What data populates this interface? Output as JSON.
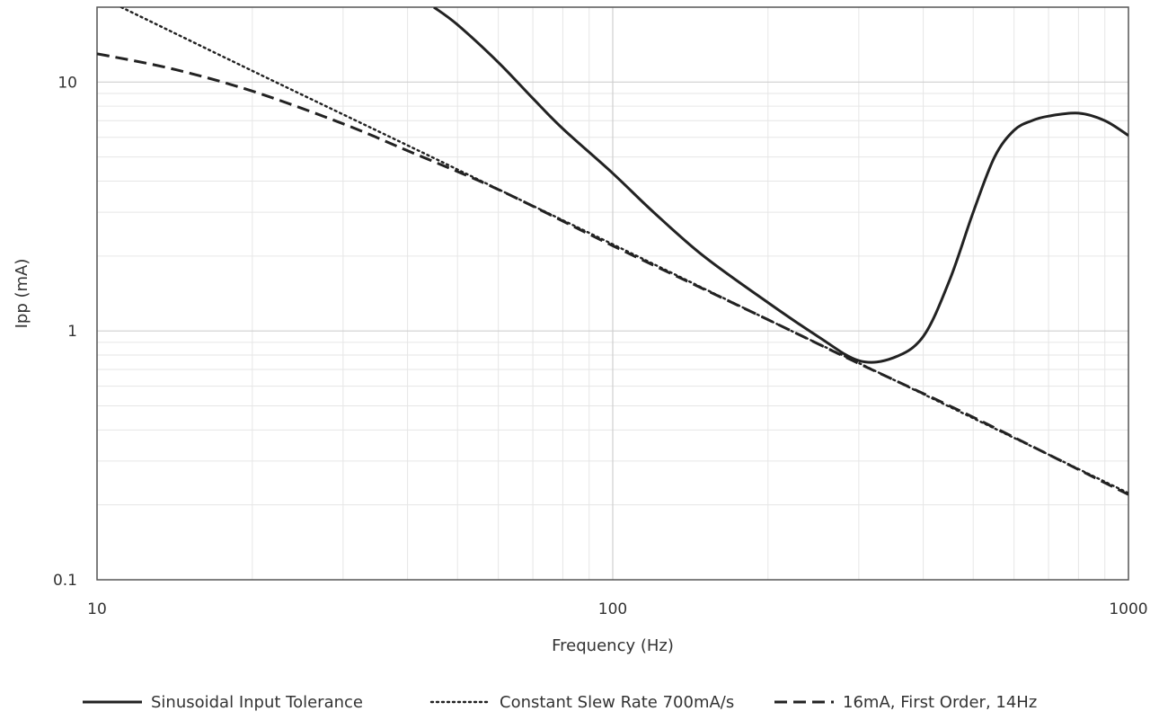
{
  "chart_data": {
    "type": "line",
    "title": "",
    "xlabel": "Frequency (Hz)",
    "ylabel": "Ipp (mA)",
    "x_scale": "log",
    "y_scale": "log",
    "xlim": [
      10,
      1000
    ],
    "ylim": [
      0.1,
      20
    ],
    "x_ticks": [
      10,
      100,
      1000
    ],
    "x_tick_labels": [
      "10",
      "100",
      "1000"
    ],
    "y_ticks": [
      0.1,
      1,
      10
    ],
    "y_tick_labels": [
      "0.1",
      "1",
      "10"
    ],
    "grid": true,
    "legend_position": "bottom",
    "series": [
      {
        "name": "Sinusoidal Input Tolerance",
        "line_style": "solid",
        "color": "#222222",
        "x": [
          45,
          50,
          60,
          70,
          80,
          100,
          120,
          150,
          200,
          250,
          300,
          350,
          400,
          450,
          500,
          550,
          600,
          650,
          700,
          800,
          900,
          1000
        ],
        "y": [
          20,
          17,
          12,
          8.6,
          6.5,
          4.3,
          3.0,
          2.0,
          1.3,
          0.95,
          0.76,
          0.78,
          0.95,
          1.6,
          3.0,
          5.0,
          6.4,
          7.0,
          7.3,
          7.5,
          7.0,
          6.1
        ]
      },
      {
        "name": "Constant Slew Rate 700mA/s",
        "line_style": "dotted",
        "color": "#222222",
        "x": [
          10,
          20,
          40,
          60,
          100,
          200,
          300,
          500,
          1000
        ],
        "y": [
          22.3,
          11.1,
          5.57,
          3.71,
          2.23,
          1.11,
          0.743,
          0.446,
          0.223
        ]
      },
      {
        "name": "16mA, First Order, 14Hz",
        "line_style": "dashed",
        "color": "#222222",
        "x": [
          10,
          14,
          20,
          30,
          40,
          60,
          100,
          200,
          300,
          500,
          1000
        ],
        "y": [
          13.0,
          11.3,
          9.2,
          6.8,
          5.3,
          3.7,
          2.2,
          1.11,
          0.74,
          0.45,
          0.22
        ]
      }
    ]
  }
}
